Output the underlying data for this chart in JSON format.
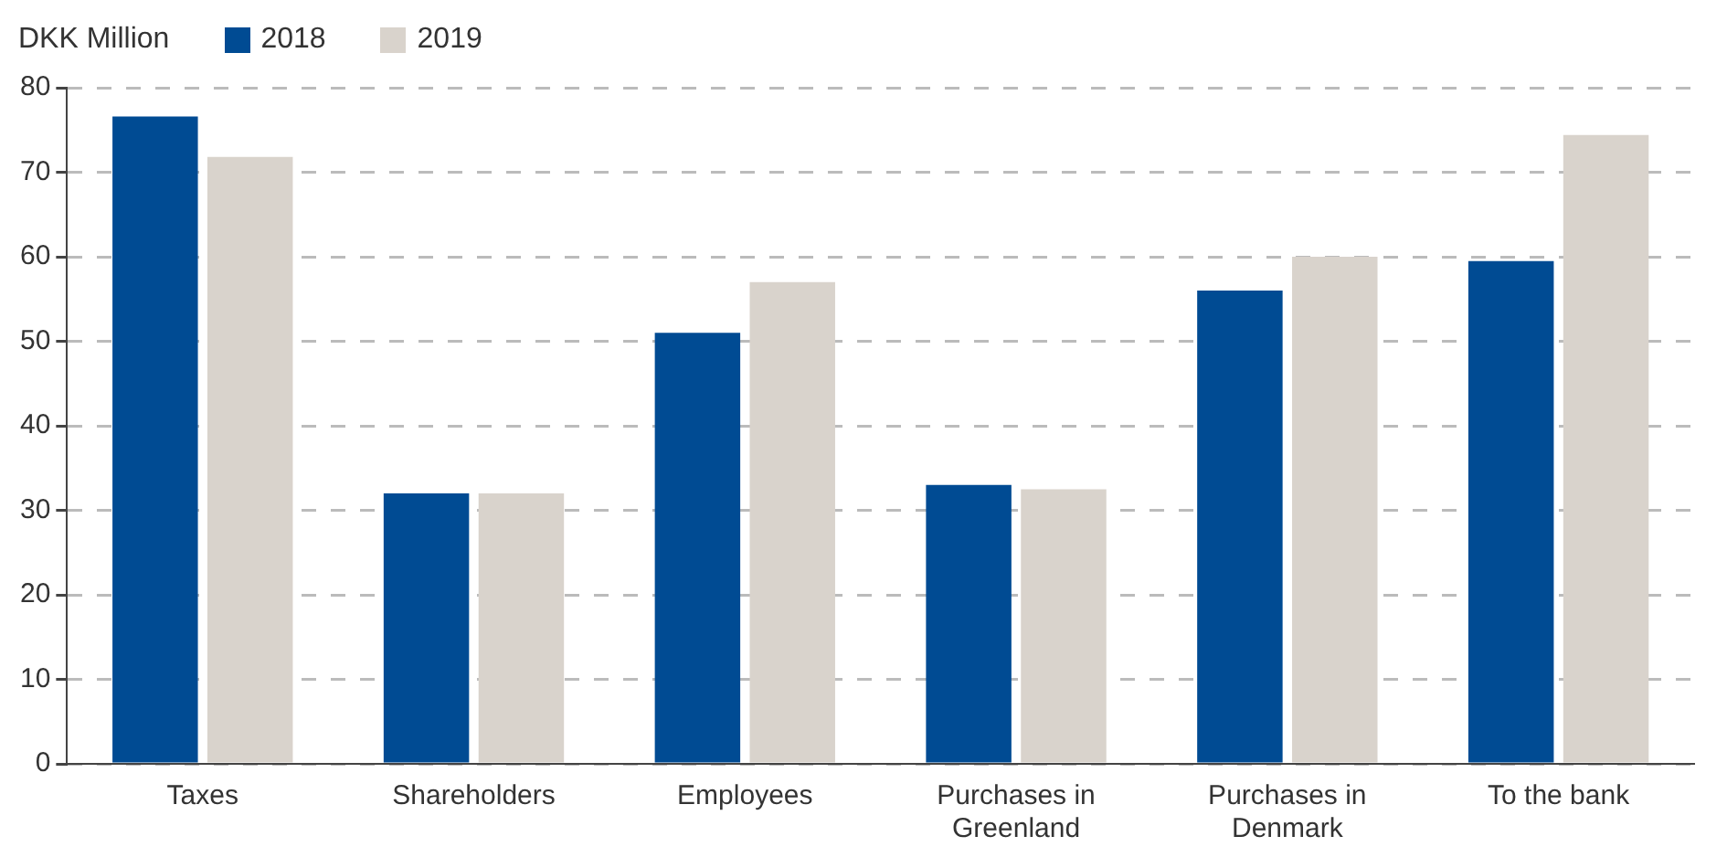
{
  "chart_data": {
    "type": "bar",
    "ylabel": "DKK Million",
    "categories": [
      "Taxes",
      "Shareholders",
      "Employees",
      "Purchases in Greenland",
      "Purchases in Denmark",
      "To the bank"
    ],
    "series": [
      {
        "name": "2018",
        "color": "#004b93",
        "values": [
          76.6,
          32,
          51,
          33,
          56,
          59.5
        ]
      },
      {
        "name": "2019",
        "color": "#d9d3cc",
        "values": [
          71.8,
          32,
          57,
          32.5,
          60,
          74.4
        ]
      }
    ],
    "ylim": [
      0,
      80
    ],
    "yticks": [
      0,
      10,
      20,
      30,
      40,
      50,
      60,
      70,
      80
    ],
    "grid": "y",
    "legend": "top left"
  }
}
